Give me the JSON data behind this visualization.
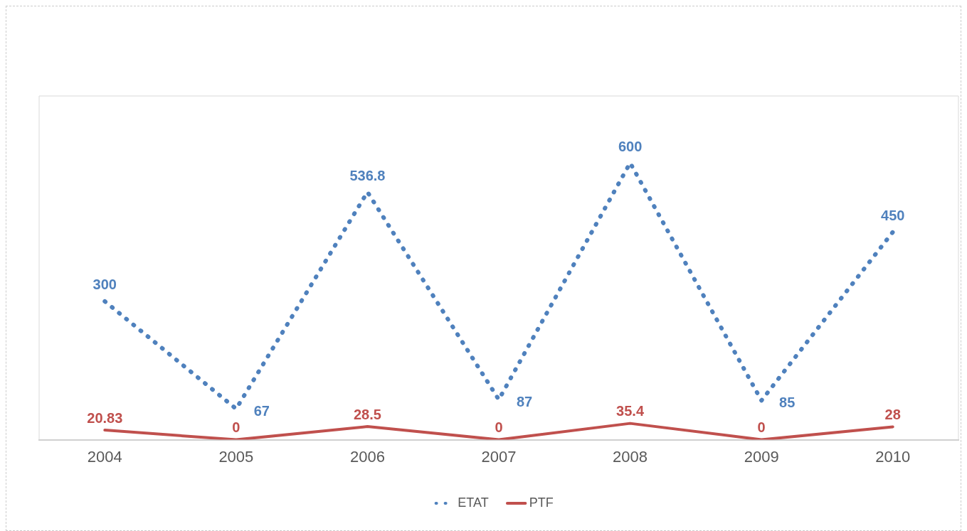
{
  "chart_data": {
    "type": "line",
    "categories": [
      "2004",
      "2005",
      "2006",
      "2007",
      "2008",
      "2009",
      "2010"
    ],
    "series": [
      {
        "name": "ETAT",
        "color": "#4f81bd",
        "values": [
          300,
          67,
          536.8,
          87,
          600,
          85,
          450
        ],
        "line_style": "dotted"
      },
      {
        "name": "PTF",
        "color": "#c0504d",
        "values": [
          20.83,
          0,
          28.5,
          0,
          35.4,
          0,
          28
        ],
        "line_style": "solid"
      }
    ],
    "ylim": [
      0,
      745
    ],
    "tick_labels": "x",
    "grid": false,
    "legend": "bottom",
    "data_labels": true
  }
}
